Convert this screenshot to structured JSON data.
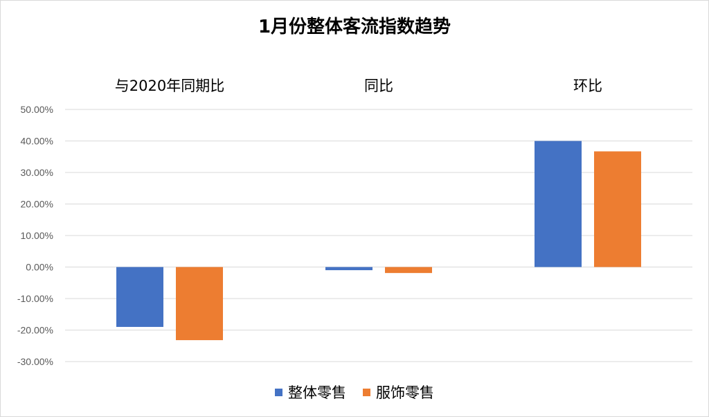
{
  "chart_data": {
    "type": "bar",
    "title": "1月份整体客流指数趋势",
    "categories": [
      "与2020年同期比",
      "同比",
      "环比"
    ],
    "series": [
      {
        "name": "整体零售",
        "color": "#4472c4",
        "values": [
          -19.0,
          -1.0,
          40.0
        ]
      },
      {
        "name": "服饰零售",
        "color": "#ed7d31",
        "values": [
          -23.2,
          -1.9,
          36.7
        ]
      }
    ],
    "ylim": [
      -30,
      50
    ],
    "y_ticks": [
      50,
      40,
      30,
      20,
      10,
      0,
      -10,
      -20,
      -30
    ],
    "y_tick_labels": [
      "50.00%",
      "40.00%",
      "30.00%",
      "20.00%",
      "10.00%",
      "0.00%",
      "-10.00%",
      "-20.00%",
      "-30.00%"
    ],
    "grid": true,
    "legend_position": "bottom",
    "xlabel": "",
    "ylabel": ""
  }
}
